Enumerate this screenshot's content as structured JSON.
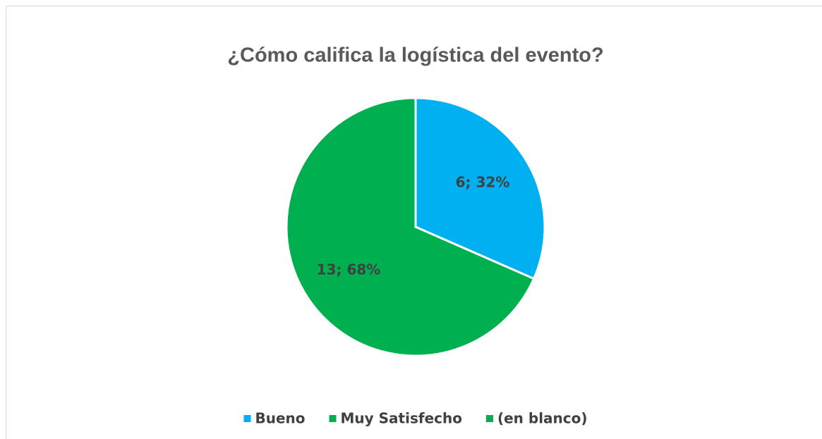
{
  "chart_data": {
    "type": "pie",
    "title": "¿Cómo califica la logística del evento?",
    "categories": [
      "Bueno",
      "Muy Satisfecho",
      "(en blanco)"
    ],
    "values": [
      6,
      13,
      0
    ],
    "value_labels": [
      "6; 32%",
      "13; 68%",
      null
    ],
    "colors": [
      "#00b0f0",
      "#00b050",
      "#00b050"
    ],
    "legend": "bottom"
  }
}
